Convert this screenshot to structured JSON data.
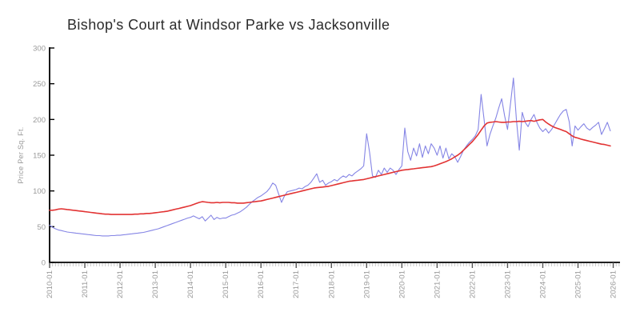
{
  "chart": {
    "background": "#ffffff",
    "axis_color": "#000000",
    "tick_label_color": "#9a9a9a",
    "major_tick_color": "#555555",
    "minor_tick_color": "#c9c9c9",
    "title_color": "#2b2b2b"
  },
  "chart_data": {
    "type": "line",
    "title": "Bishop's Court at Windsor Parke vs Jacksonville",
    "xlabel": "",
    "ylabel": "Price Per Sq. Ft.",
    "ylim": [
      0,
      300
    ],
    "y_ticks": [
      0,
      50,
      100,
      150,
      200,
      250,
      300
    ],
    "x_start_month": "2010-01",
    "x_tick_labels": [
      "2010-01",
      "2011-01",
      "2012-01",
      "2013-01",
      "2014-01",
      "2015-01",
      "2016-01",
      "2017-01",
      "2018-01",
      "2019-01",
      "2020-01",
      "2021-01",
      "2022-01",
      "2023-01",
      "2024-01",
      "2025-01",
      "2026-01"
    ],
    "grid": false,
    "legend_position": "none",
    "series": [
      {
        "name": "Bishop's Court at Windsor Parke",
        "color": "#8585e5",
        "stroke_width": 1.1,
        "values": [
          52,
          49,
          47,
          45.5,
          44.5,
          43.5,
          42.5,
          42,
          41.5,
          41,
          40.5,
          40,
          39.5,
          39,
          38.5,
          38,
          37.5,
          37.5,
          37,
          37,
          37,
          37.5,
          37.5,
          38,
          38,
          38.5,
          39,
          39.5,
          40,
          40.5,
          41,
          41.5,
          42,
          43,
          44,
          45,
          46,
          47,
          48.5,
          50,
          51.5,
          53,
          54.5,
          56,
          57.5,
          59,
          60.5,
          62,
          63,
          65,
          63,
          61,
          64,
          58,
          62,
          66,
          60,
          63,
          61,
          62,
          62,
          64,
          66,
          67,
          69,
          71,
          74,
          77,
          81,
          85,
          88,
          91,
          93,
          96,
          99,
          104,
          111,
          108,
          96,
          84,
          93,
          99,
          100,
          101,
          102,
          104,
          103,
          106,
          108,
          112,
          118,
          124,
          112,
          115,
          108,
          111,
          113,
          116,
          114,
          118,
          121,
          119,
          123,
          121,
          125,
          128,
          131,
          135,
          180,
          154,
          121,
          119,
          129,
          123,
          132,
          126,
          132,
          129,
          123,
          130,
          135,
          188,
          155,
          143,
          160,
          149,
          166,
          147,
          163,
          152,
          166,
          160,
          150,
          163,
          146,
          160,
          145,
          152,
          148,
          140,
          148,
          157,
          163,
          168,
          172,
          177,
          186,
          235,
          200,
          163,
          179,
          191,
          202,
          216,
          229,
          205,
          186,
          222,
          258,
          200,
          157,
          210,
          196,
          190,
          200,
          207,
          196,
          188,
          183,
          187,
          181,
          186,
          193,
          200,
          207,
          212,
          214,
          197,
          163,
          191,
          185,
          190,
          194,
          188,
          185,
          189,
          192,
          196,
          179,
          187,
          196,
          184
        ]
      },
      {
        "name": "Jacksonville",
        "color": "#e23333",
        "stroke_width": 1.6,
        "values": [
          73,
          73,
          73.5,
          74.5,
          75,
          74.5,
          74,
          73.5,
          73,
          72.5,
          72,
          71.5,
          71,
          70.5,
          70,
          69.5,
          69,
          68.5,
          68,
          67.5,
          67.5,
          67,
          67,
          67,
          67,
          67,
          67,
          67,
          67,
          67.5,
          67.5,
          68,
          68,
          68.5,
          68.5,
          69,
          69.5,
          70,
          70.5,
          71,
          71.5,
          72.5,
          73.5,
          74.5,
          75.5,
          76.5,
          77.5,
          78.5,
          79.5,
          81,
          82.5,
          84,
          85,
          84.5,
          84,
          83.5,
          83.5,
          84,
          83.5,
          84,
          84,
          84,
          83.5,
          83.5,
          83,
          83,
          83,
          83.5,
          84,
          84.5,
          85,
          85.5,
          86,
          87,
          88,
          89,
          90,
          91,
          92,
          93,
          94,
          95,
          96,
          97,
          98,
          99,
          100,
          101,
          102,
          103,
          104,
          104.5,
          105,
          105.5,
          106,
          106.5,
          107.5,
          108.5,
          109.5,
          110.5,
          111.5,
          112.5,
          113.5,
          114,
          114.5,
          115,
          115.5,
          116,
          117,
          118,
          119,
          120,
          121,
          122,
          123,
          124,
          125,
          126,
          127,
          128,
          129,
          129.5,
          130,
          130.5,
          131,
          131.5,
          132,
          132.5,
          133,
          133.5,
          134,
          135,
          136.5,
          138,
          139.5,
          141,
          143,
          145,
          147.5,
          150,
          153,
          157,
          161,
          165,
          169,
          174,
          179,
          185,
          191,
          195,
          196,
          196.5,
          197,
          196.5,
          196,
          196,
          196.5,
          196.5,
          197,
          197,
          197.5,
          197,
          197.5,
          198,
          198.5,
          197.5,
          198.5,
          199.5,
          200,
          196.5,
          193.5,
          191,
          189,
          187.5,
          186,
          184.5,
          183,
          180,
          177,
          175,
          174,
          172.5,
          171.5,
          170.5,
          169.5,
          168.5,
          167.5,
          166.5,
          165.5,
          165,
          164,
          163
        ]
      }
    ]
  }
}
